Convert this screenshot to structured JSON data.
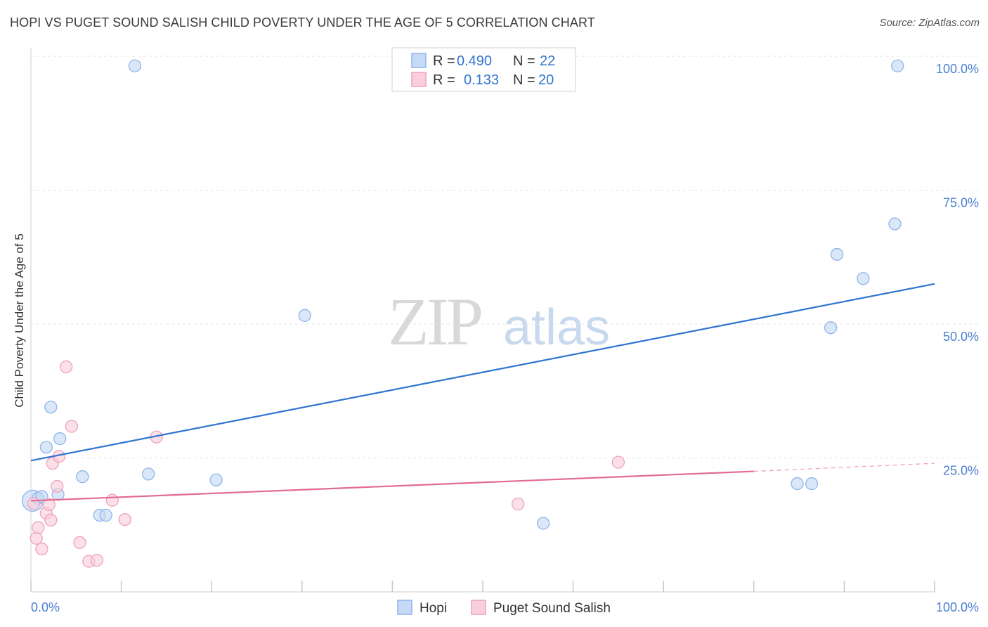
{
  "chart_data": {
    "type": "scatter",
    "title": "HOPI VS PUGET SOUND SALISH CHILD POVERTY UNDER THE AGE OF 5 CORRELATION CHART",
    "source": "Source: ZipAtlas.com",
    "xlabel": "",
    "ylabel": "Child Poverty Under the Age of 5",
    "xlim": [
      0,
      100
    ],
    "ylim": [
      0,
      100
    ],
    "x_tick_labels": [
      "0.0%",
      "100.0%"
    ],
    "y_ticks": [
      {
        "value": 25,
        "label": "25.0%"
      },
      {
        "value": 50,
        "label": "50.0%"
      },
      {
        "value": 75,
        "label": "75.0%"
      },
      {
        "value": 100,
        "label": "100.0%"
      }
    ],
    "watermark": {
      "zip": "ZIP",
      "atlas": "atlas"
    },
    "legend_stats": [
      {
        "r_label": "R =",
        "r_value": "0.490",
        "n_label": "N =",
        "n_value": "22"
      },
      {
        "r_label": "R =",
        "r_value": "0.133",
        "n_label": "N =",
        "n_value": "20"
      }
    ],
    "series": [
      {
        "name": "Hopi",
        "color": "#8fb6ea",
        "fill": "#c6daf5",
        "line_color": "#2f74d0",
        "trend": {
          "x0": 0,
          "y0": 24.5,
          "x1": 100,
          "y1": 57.5
        },
        "points": [
          {
            "x": 0.2,
            "y": 17.0,
            "big": true
          },
          {
            "x": 0.8,
            "y": 17.5
          },
          {
            "x": 1.2,
            "y": 17.8
          },
          {
            "x": 1.7,
            "y": 27.0
          },
          {
            "x": 2.2,
            "y": 34.5
          },
          {
            "x": 3.0,
            "y": 18.2
          },
          {
            "x": 3.2,
            "y": 28.6
          },
          {
            "x": 5.7,
            "y": 21.5
          },
          {
            "x": 7.6,
            "y": 14.3
          },
          {
            "x": 8.3,
            "y": 14.3
          },
          {
            "x": 11.5,
            "y": 98.2
          },
          {
            "x": 13.0,
            "y": 22.0
          },
          {
            "x": 20.5,
            "y": 20.9
          },
          {
            "x": 30.3,
            "y": 51.6
          },
          {
            "x": 56.7,
            "y": 12.8
          },
          {
            "x": 84.8,
            "y": 20.2
          },
          {
            "x": 86.4,
            "y": 20.2
          },
          {
            "x": 88.5,
            "y": 49.3
          },
          {
            "x": 89.2,
            "y": 63.0
          },
          {
            "x": 92.1,
            "y": 58.5
          },
          {
            "x": 95.6,
            "y": 68.7
          },
          {
            "x": 95.9,
            "y": 98.2
          }
        ]
      },
      {
        "name": "Puget Sound Salish",
        "color": "#f0a2bb",
        "fill": "#f9cfdc",
        "line_color": "#e26a93",
        "trend": {
          "x0": 0,
          "y0": 17.0,
          "x1": 80,
          "y1": 22.5
        },
        "trend_dashed": {
          "x0": 80,
          "y0": 22.5,
          "x1": 100,
          "y1": 24.0
        },
        "points": [
          {
            "x": 0.3,
            "y": 16.5
          },
          {
            "x": 0.6,
            "y": 10.0
          },
          {
            "x": 0.8,
            "y": 12.0
          },
          {
            "x": 1.2,
            "y": 8.0
          },
          {
            "x": 1.7,
            "y": 14.7
          },
          {
            "x": 2.0,
            "y": 16.3
          },
          {
            "x": 2.2,
            "y": 13.4
          },
          {
            "x": 2.4,
            "y": 24.0
          },
          {
            "x": 2.9,
            "y": 19.7
          },
          {
            "x": 3.1,
            "y": 25.3
          },
          {
            "x": 3.9,
            "y": 42.0
          },
          {
            "x": 4.5,
            "y": 30.9
          },
          {
            "x": 5.4,
            "y": 9.2
          },
          {
            "x": 6.4,
            "y": 5.7
          },
          {
            "x": 7.3,
            "y": 5.9
          },
          {
            "x": 9.0,
            "y": 17.1
          },
          {
            "x": 10.4,
            "y": 13.5
          },
          {
            "x": 13.9,
            "y": 28.9
          },
          {
            "x": 53.9,
            "y": 16.4
          },
          {
            "x": 65.0,
            "y": 24.2
          }
        ]
      }
    ]
  }
}
